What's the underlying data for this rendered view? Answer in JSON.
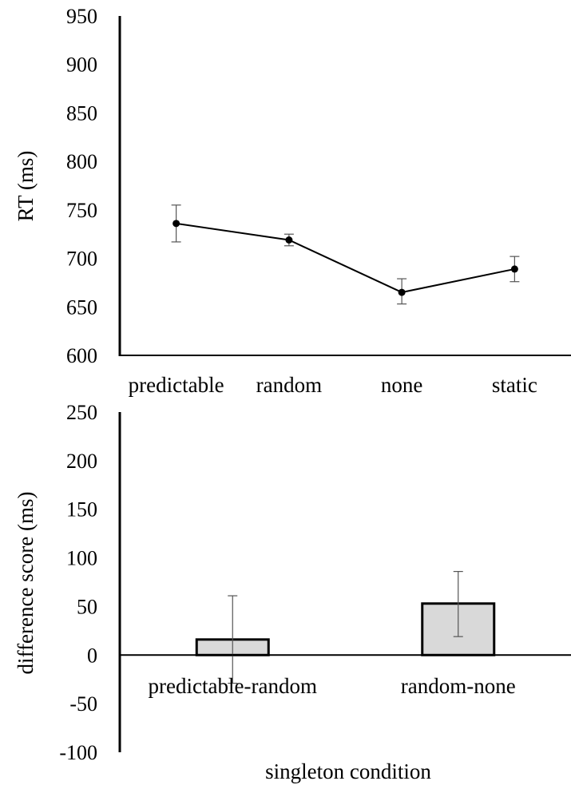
{
  "colors": {
    "axis": "#000000",
    "line": "#000000",
    "marker": "#000000",
    "bar_fill": "#d9d9d9",
    "bar_stroke": "#000000",
    "error_bar": "#555555"
  },
  "chart_data": [
    {
      "type": "line",
      "ylabel": "RT (ms)",
      "xlabel": "",
      "ylim": [
        600,
        950
      ],
      "yticks": [
        600,
        650,
        700,
        750,
        800,
        850,
        900,
        950
      ],
      "ytick_labels": [
        "600",
        "650",
        "700",
        "750",
        "800",
        "850",
        "900",
        "950"
      ],
      "categories": [
        "predictable",
        "random",
        "none",
        "static"
      ],
      "series": [
        {
          "values": [
            736,
            719,
            665,
            689
          ],
          "error_low": [
            717,
            713,
            653,
            676
          ],
          "error_high": [
            755,
            725,
            679,
            702
          ]
        }
      ],
      "markers": true,
      "grid": false
    },
    {
      "type": "bar",
      "ylabel": "difference score (ms)",
      "xlabel": "singleton condition",
      "ylim": [
        -100,
        250
      ],
      "yticks": [
        -100,
        -50,
        0,
        50,
        100,
        150,
        200,
        250
      ],
      "ytick_labels": [
        "-100",
        "-50",
        "0",
        "50",
        "100",
        "150",
        "200",
        "250"
      ],
      "categories": [
        "predictable-random",
        "random-none"
      ],
      "series": [
        {
          "values": [
            16,
            53
          ],
          "error_low": [
            -29,
            19
          ],
          "error_high": [
            61,
            86
          ]
        }
      ],
      "grid": false
    }
  ]
}
